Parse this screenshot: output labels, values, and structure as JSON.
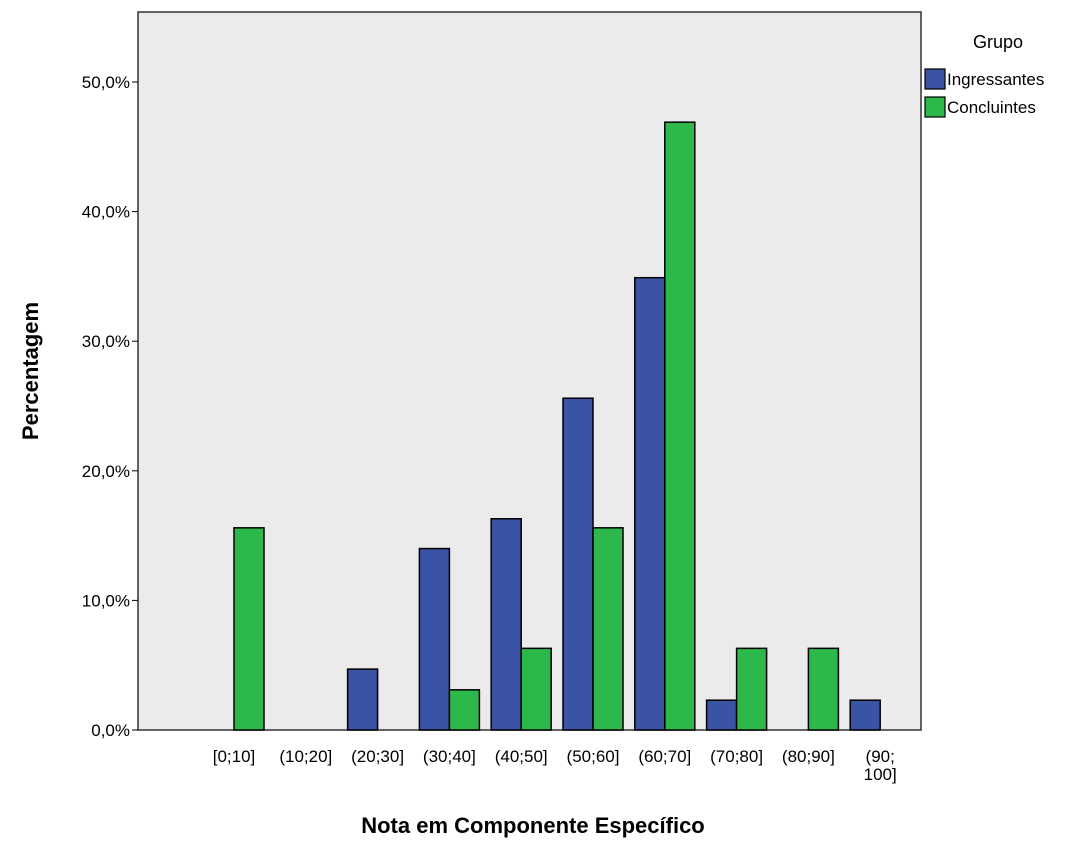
{
  "chart_data": {
    "type": "bar",
    "title": "",
    "xlabel": "Nota em Componente Específico",
    "ylabel": "Percentagem",
    "ylim": [
      0,
      55
    ],
    "yticks": [
      0,
      10,
      20,
      30,
      40,
      50
    ],
    "ytick_labels": [
      "0,0%",
      "10,0%",
      "20,0%",
      "30,0%",
      "40,0%",
      "50,0%"
    ],
    "grid": false,
    "legend_position": "top-right",
    "legend_title": "Grupo",
    "categories": [
      "[0;10]",
      "(10;20]",
      "(20;30]",
      "(30;40]",
      "(40;50]",
      "(50;60]",
      "(60;70]",
      "(70;80]",
      "(80;90]",
      "(90; 100]"
    ],
    "category_lines": [
      [
        "[0;10]"
      ],
      [
        "(10;20]"
      ],
      [
        "(20;30]"
      ],
      [
        "(30;40]"
      ],
      [
        "(40;50]"
      ],
      [
        "(50;60]"
      ],
      [
        "(60;70]"
      ],
      [
        "(70;80]"
      ],
      [
        "(80;90]"
      ],
      [
        "(90;",
        "100]"
      ]
    ],
    "series": [
      {
        "name": "Ingressantes",
        "color": "#3a53a4",
        "values": [
          0,
          0,
          4.7,
          14.0,
          16.3,
          25.6,
          34.9,
          2.3,
          0,
          2.3
        ]
      },
      {
        "name": "Concluintes",
        "color": "#2db84b",
        "values": [
          15.6,
          0,
          0,
          3.1,
          6.3,
          15.6,
          46.9,
          6.3,
          6.3,
          0
        ]
      }
    ]
  }
}
